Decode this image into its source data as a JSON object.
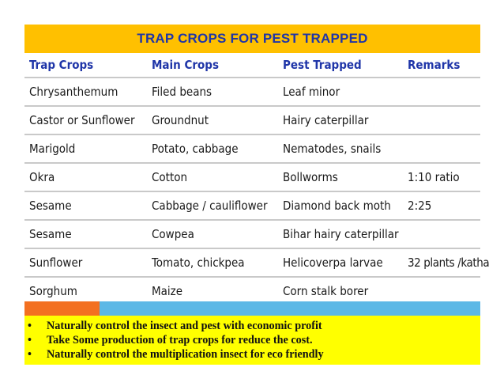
{
  "title": "TRAP CROPS FOR PEST TRAPPED",
  "table": {
    "headers": [
      "Trap Crops",
      "Main Crops",
      "Pest Trapped",
      "Remarks"
    ],
    "rows": [
      [
        "Chrysanthemum",
        "Filed beans",
        "Leaf minor",
        ""
      ],
      [
        "Castor  or Sunflower",
        "Groundnut",
        "Hairy caterpillar",
        ""
      ],
      [
        "Marigold",
        "Potato, cabbage",
        "Nematodes, snails",
        ""
      ],
      [
        "Okra",
        "Cotton",
        "Bollworms",
        "1:10 ratio"
      ],
      [
        "Sesame",
        "Cabbage / cauliflower",
        "Diamond back moth",
        "2:25"
      ],
      [
        "Sesame",
        "Cowpea",
        "Bihar hairy caterpillar",
        ""
      ],
      [
        "Sunflower",
        "Tomato, chickpea",
        "Helicoverpa larvae",
        "32 plants /katha"
      ],
      [
        "Sorghum",
        "Maize",
        "Corn stalk borer",
        ""
      ]
    ]
  },
  "notes": {
    "bullet": "•",
    "items": [
      "Naturally control the insect and pest with economic profit",
      "Take Some production of trap crops for reduce the cost.",
      "Naturally control the multiplication insect for eco friendly"
    ]
  },
  "colors": {
    "title_bg": "#ffc000",
    "title_text": "#1f35a8",
    "notes_bg": "#ffff00",
    "accent_orange": "#f37021",
    "accent_blue": "#5cb8e6"
  }
}
